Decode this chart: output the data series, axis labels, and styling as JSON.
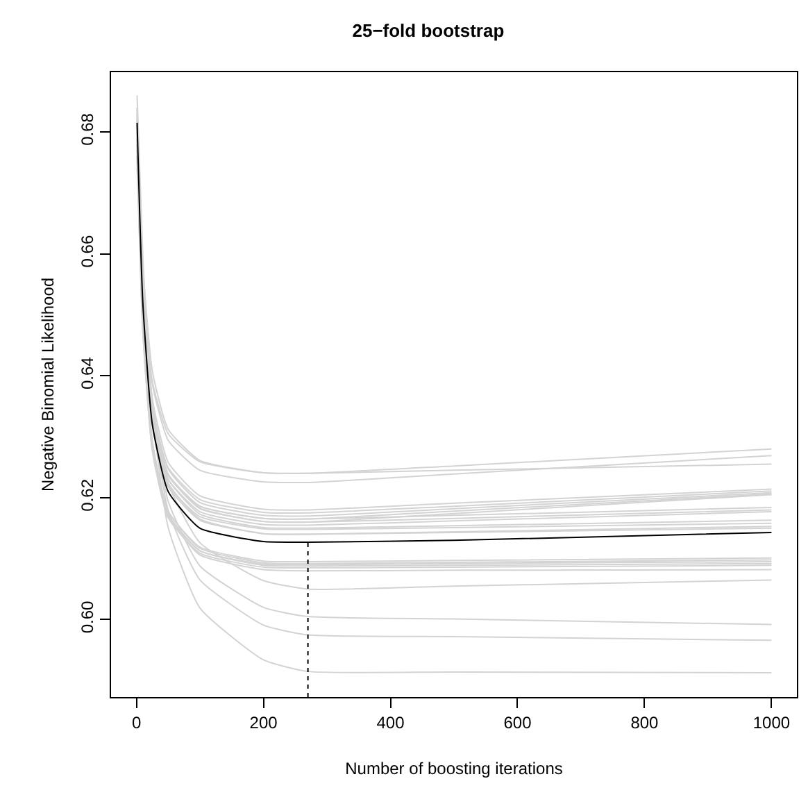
{
  "chart_data": {
    "type": "line",
    "title": "25−fold bootstrap",
    "xlabel": "Number of boosting iterations",
    "ylabel": "Negative Binomial Likelihood",
    "x": [
      1,
      10,
      25,
      50,
      100,
      200,
      270,
      500,
      1000
    ],
    "xlim": [
      -40,
      1040
    ],
    "xticks": [
      0,
      200,
      400,
      600,
      800,
      1000
    ],
    "ylim": [
      0.5873,
      0.6898
    ],
    "yticks": [
      {
        "value": 0.6,
        "label": "0.60"
      },
      {
        "value": 0.62,
        "label": "0.62"
      },
      {
        "value": 0.64,
        "label": "0.64"
      },
      {
        "value": 0.66,
        "label": "0.66"
      },
      {
        "value": 0.68,
        "label": "0.68"
      }
    ],
    "marker": "none",
    "line_style": "solid",
    "series": [
      {
        "color": "#d3d3d3",
        "values": [
          0.684,
          0.6582,
          0.6408,
          0.6312,
          0.6261,
          0.6241,
          0.624,
          0.6252,
          0.628
        ]
      },
      {
        "color": "#d3d3d3",
        "values": [
          0.68,
          0.6553,
          0.6386,
          0.6294,
          0.6245,
          0.6226,
          0.6225,
          0.6239,
          0.6269
        ]
      },
      {
        "color": "#d3d3d3",
        "values": [
          0.678,
          0.6548,
          0.6391,
          0.6305,
          0.6259,
          0.6241,
          0.624,
          0.6245,
          0.6255
        ]
      },
      {
        "color": "#d3d3d3",
        "values": [
          0.683,
          0.6551,
          0.6362,
          0.6258,
          0.6203,
          0.6181,
          0.618,
          0.6191,
          0.6214
        ]
      },
      {
        "color": "#d3d3d3",
        "values": [
          0.679,
          0.6526,
          0.6347,
          0.6249,
          0.6197,
          0.6176,
          0.6175,
          0.6186,
          0.6211
        ]
      },
      {
        "color": "#d3d3d3",
        "values": [
          0.681,
          0.6535,
          0.6349,
          0.6247,
          0.6192,
          0.6171,
          0.617,
          0.6182,
          0.6208
        ]
      },
      {
        "color": "#d3d3d3",
        "values": [
          0.677,
          0.651,
          0.6334,
          0.6238,
          0.6186,
          0.6166,
          0.6165,
          0.6178,
          0.6206
        ]
      },
      {
        "color": "#d3d3d3",
        "values": [
          0.682,
          0.6536,
          0.6345,
          0.6239,
          0.6183,
          0.6161,
          0.616,
          0.6174,
          0.6205
        ]
      },
      {
        "color": "#d3d3d3",
        "values": [
          0.676,
          0.6504,
          0.6332,
          0.6236,
          0.6186,
          0.6166,
          0.6165,
          0.6171,
          0.6184
        ]
      },
      {
        "color": "#d3d3d3",
        "values": [
          0.68,
          0.6525,
          0.6339,
          0.6237,
          0.6182,
          0.6161,
          0.616,
          0.6166,
          0.618
        ]
      },
      {
        "color": "#d3d3d3",
        "values": [
          0.678,
          0.6511,
          0.633,
          0.623,
          0.6177,
          0.6156,
          0.6155,
          0.6162,
          0.6177
        ]
      },
      {
        "color": "#d3d3d3",
        "values": [
          0.682,
          0.6532,
          0.6338,
          0.623,
          0.6173,
          0.6151,
          0.615,
          0.6154,
          0.6163
        ]
      },
      {
        "color": "#d3d3d3",
        "values": [
          0.675,
          0.6491,
          0.6317,
          0.622,
          0.6169,
          0.6149,
          0.6148,
          0.6151,
          0.6158
        ]
      },
      {
        "color": "#d3d3d3",
        "values": [
          0.679,
          0.6511,
          0.6322,
          0.6218,
          0.6163,
          0.6141,
          0.614,
          0.6144,
          0.6153
        ]
      },
      {
        "color": "#d3d3d3",
        "values": [
          0.684,
          0.6539,
          0.6336,
          0.6224,
          0.6165,
          0.6141,
          0.614,
          0.6143,
          0.615
        ]
      },
      {
        "color": "#d3d3d3",
        "values": [
          0.678,
          0.6485,
          0.6287,
          0.6177,
          0.6119,
          0.6096,
          0.6095,
          0.6097,
          0.6101
        ]
      },
      {
        "color": "#d3d3d3",
        "values": [
          0.681,
          0.6501,
          0.6293,
          0.6178,
          0.6117,
          0.6093,
          0.6092,
          0.6094,
          0.6098
        ]
      },
      {
        "color": "#d3d3d3",
        "values": [
          0.676,
          0.6472,
          0.6278,
          0.617,
          0.6113,
          0.6091,
          0.609,
          0.6092,
          0.6095
        ]
      },
      {
        "color": "#d3d3d3",
        "values": [
          0.68,
          0.6494,
          0.6287,
          0.6173,
          0.6113,
          0.6089,
          0.6088,
          0.6089,
          0.6092
        ]
      },
      {
        "color": "#d3d3d3",
        "values": [
          0.677,
          0.6475,
          0.6277,
          0.6167,
          0.6109,
          0.6086,
          0.6085,
          0.6086,
          0.6089
        ]
      },
      {
        "color": "#d3d3d3",
        "values": [
          0.683,
          0.6508,
          0.629,
          0.617,
          0.6106,
          0.6082,
          0.608,
          0.6081,
          0.6082
        ]
      },
      {
        "color": "#d3d3d3",
        "values": [
          0.674,
          0.6547,
          0.6361,
          0.6223,
          0.6126,
          0.6064,
          0.605,
          0.6055,
          0.6065
        ]
      },
      {
        "color": "#d3d3d3",
        "values": [
          0.676,
          0.6549,
          0.6345,
          0.6194,
          0.6088,
          0.602,
          0.6005,
          0.6001,
          0.5992
        ]
      },
      {
        "color": "#d3d3d3",
        "values": [
          0.679,
          0.6562,
          0.6342,
          0.6179,
          0.6065,
          0.5991,
          0.5975,
          0.5972,
          0.5966
        ]
      },
      {
        "color": "#d3d3d3",
        "values": [
          0.686,
          0.6595,
          0.634,
          0.6151,
          0.6019,
          0.5934,
          0.5915,
          0.5914,
          0.5913
        ]
      },
      {
        "color": "#000000",
        "values": [
          0.6815,
          0.652,
          0.632,
          0.621,
          0.615,
          0.6128,
          0.6127,
          0.613,
          0.6143
        ]
      },
      {
        "color": "#000000",
        "x": [
          270,
          270
        ],
        "values": [
          0.5873,
          0.6127
        ],
        "line_style": "dashed"
      }
    ]
  }
}
